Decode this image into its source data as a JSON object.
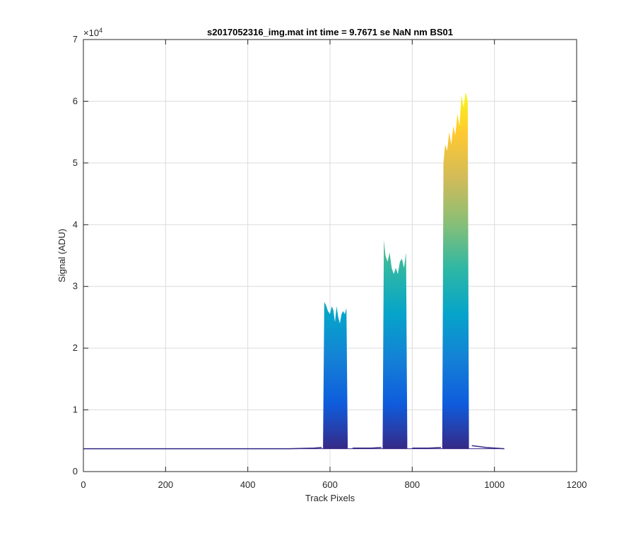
{
  "chart_data": {
    "type": "area",
    "title": "s2017052316_img.mat int time = 9.7671 se  NaN nm BS01",
    "xlabel": "Track Pixels",
    "ylabel": "Signal (ADU)",
    "y_exponent_label": "×10",
    "y_exponent_power": "4",
    "xlim": [
      0,
      1200
    ],
    "ylim": [
      0,
      7
    ],
    "y_scale_factor": 10000,
    "xticks": [
      0,
      200,
      400,
      600,
      800,
      1000,
      1200
    ],
    "yticks": [
      0,
      1,
      2,
      3,
      4,
      5,
      6,
      7
    ],
    "xtick_labels": [
      "0",
      "200",
      "400",
      "600",
      "800",
      "1000",
      "1200"
    ],
    "ytick_labels": [
      "0",
      "1",
      "2",
      "3",
      "4",
      "5",
      "6",
      "7"
    ],
    "grid": true,
    "colormap": [
      "#352a87",
      "#0f5cdd",
      "#1481d6",
      "#06a4ca",
      "#2eb7a4",
      "#87bf77",
      "#d1bb59",
      "#fec832",
      "#f9fb0e"
    ],
    "baseline": 0.37,
    "series": [
      {
        "x": [
          1,
          100,
          200,
          300,
          400,
          500,
          560,
          580
        ],
        "y": [
          0.37,
          0.37,
          0.37,
          0.37,
          0.37,
          0.37,
          0.38,
          0.39
        ],
        "role": "baseline"
      },
      {
        "x": [
          583,
          586,
          590,
          595,
          600,
          604,
          608,
          612,
          616,
          620,
          624,
          628,
          632,
          636,
          640,
          643
        ],
        "y": [
          0.4,
          2.75,
          2.7,
          2.6,
          2.55,
          2.68,
          2.62,
          2.42,
          2.68,
          2.5,
          2.4,
          2.55,
          2.6,
          2.55,
          2.65,
          0.5
        ],
        "role": "peak"
      },
      {
        "x": [
          655,
          700,
          725
        ],
        "y": [
          0.38,
          0.38,
          0.39
        ],
        "role": "baseline"
      },
      {
        "x": [
          728,
          731,
          735,
          740,
          745,
          750,
          755,
          760,
          765,
          770,
          775,
          780,
          785,
          788
        ],
        "y": [
          0.4,
          3.75,
          3.5,
          3.4,
          3.55,
          3.3,
          3.2,
          3.3,
          3.2,
          3.4,
          3.45,
          3.3,
          3.55,
          0.5
        ],
        "role": "peak"
      },
      {
        "x": [
          800,
          840,
          870
        ],
        "y": [
          0.38,
          0.38,
          0.39
        ],
        "role": "baseline"
      },
      {
        "x": [
          873,
          876,
          880,
          885,
          890,
          895,
          900,
          905,
          910,
          915,
          920,
          925,
          930,
          935,
          938
        ],
        "y": [
          0.45,
          5.0,
          5.3,
          5.2,
          5.5,
          5.3,
          5.6,
          5.45,
          5.8,
          5.6,
          6.1,
          5.9,
          6.15,
          6.0,
          0.5
        ],
        "role": "peak"
      },
      {
        "x": [
          945,
          980,
          1024
        ],
        "y": [
          0.42,
          0.39,
          0.37
        ],
        "role": "baseline"
      }
    ]
  }
}
